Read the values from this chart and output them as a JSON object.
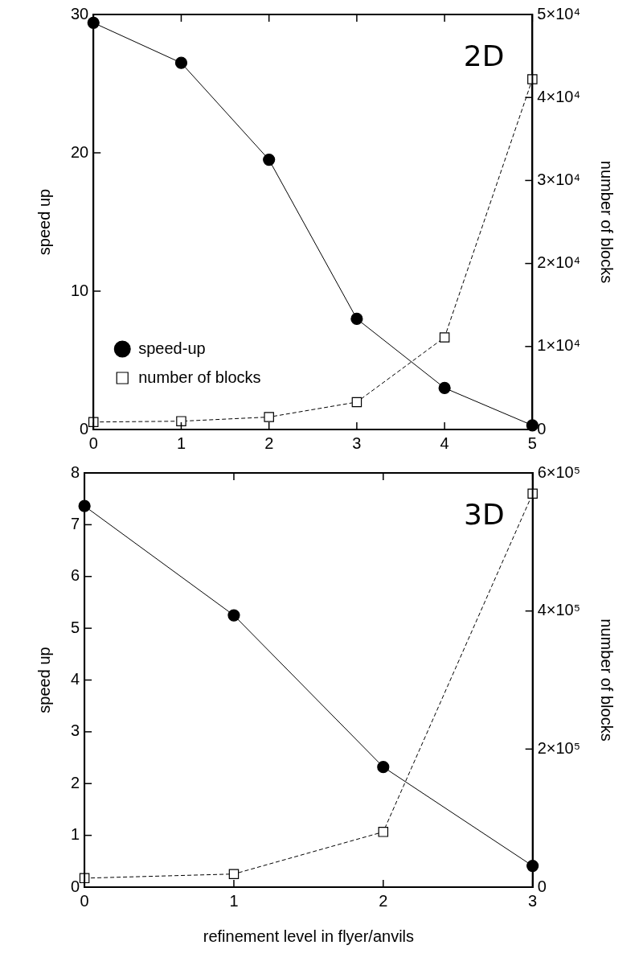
{
  "chart_data": [
    {
      "type": "line",
      "x": [
        0,
        1,
        2,
        3,
        4,
        5
      ],
      "xlim": [
        0,
        5
      ],
      "xticks": [
        0,
        1,
        2,
        3,
        4,
        5
      ],
      "ylabel": "speed up",
      "y2label": "number of blocks",
      "ylim": [
        0,
        30
      ],
      "yticks": [
        0,
        10,
        20,
        30
      ],
      "y2lim": [
        0,
        50000
      ],
      "y2ticks": [
        {
          "value": 0,
          "label": "0"
        },
        {
          "value": 10000,
          "label": "1×10⁴"
        },
        {
          "value": 20000,
          "label": "2×10⁴"
        },
        {
          "value": 30000,
          "label": "3×10⁴"
        },
        {
          "value": 40000,
          "label": "4×10⁴"
        },
        {
          "value": 50000,
          "label": "5×10⁴"
        }
      ],
      "grid": false,
      "legend": "bottom left",
      "annotations": [
        "2D"
      ],
      "series": [
        {
          "name": "speed-up",
          "color": "#000000",
          "marker": "circle",
          "line_style": "solid",
          "values": [
            29.4,
            26.5,
            19.5,
            8.0,
            3.0,
            0.3
          ]
        },
        {
          "name": "number of blocks",
          "color": "#000000",
          "marker": "square",
          "line_style": "dashed",
          "axis": "y2",
          "values": [
            900,
            1000,
            1500,
            3300,
            11100,
            42200
          ]
        }
      ]
    },
    {
      "type": "line",
      "x": [
        0,
        1,
        2,
        3
      ],
      "xlim": [
        0,
        3
      ],
      "xticks": [
        0,
        1,
        2,
        3
      ],
      "xlabel": "refinement level in flyer/anvils",
      "ylabel": "speed up",
      "y2label": "number of blocks",
      "ylim": [
        0,
        8
      ],
      "yticks": [
        0,
        1,
        2,
        3,
        4,
        5,
        6,
        7,
        8
      ],
      "y2lim": [
        0,
        600000
      ],
      "y2ticks": [
        {
          "value": 0,
          "label": "0"
        },
        {
          "value": 200000,
          "label": "2×10⁵"
        },
        {
          "value": 400000,
          "label": "4×10⁵"
        },
        {
          "value": 600000,
          "label": "6×10⁵"
        }
      ],
      "grid": false,
      "annotations": [
        "3D"
      ],
      "series": [
        {
          "color": "#000000",
          "marker": "circle",
          "line_style": "solid",
          "values": [
            7.36,
            5.25,
            2.32,
            0.41
          ]
        },
        {
          "color": "#000000",
          "marker": "square",
          "line_style": "dashed",
          "axis": "y2",
          "values": [
            13000,
            19000,
            80000,
            570000
          ]
        }
      ]
    }
  ]
}
